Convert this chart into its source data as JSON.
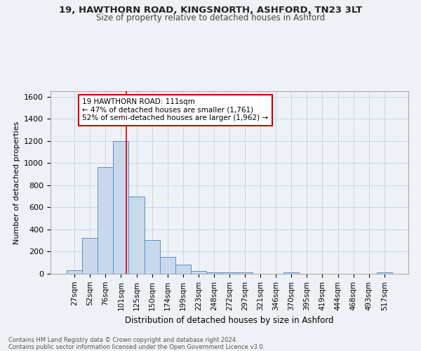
{
  "title_line1": "19, HAWTHORN ROAD, KINGSNORTH, ASHFORD, TN23 3LT",
  "title_line2": "Size of property relative to detached houses in Ashford",
  "xlabel": "Distribution of detached houses by size in Ashford",
  "ylabel": "Number of detached properties",
  "footnote": "Contains HM Land Registry data © Crown copyright and database right 2024.\nContains public sector information licensed under the Open Government Licence v3.0.",
  "bar_labels": [
    "27sqm",
    "52sqm",
    "76sqm",
    "101sqm",
    "125sqm",
    "150sqm",
    "174sqm",
    "199sqm",
    "223sqm",
    "248sqm",
    "272sqm",
    "297sqm",
    "321sqm",
    "346sqm",
    "370sqm",
    "395sqm",
    "419sqm",
    "444sqm",
    "468sqm",
    "493sqm",
    "517sqm"
  ],
  "bar_values": [
    30,
    325,
    965,
    1200,
    700,
    305,
    155,
    80,
    25,
    15,
    15,
    15,
    0,
    0,
    15,
    0,
    0,
    0,
    0,
    0,
    15
  ],
  "bar_color": "#c9d9ed",
  "bar_edge_color": "#5b8ec4",
  "ylim": [
    0,
    1650
  ],
  "yticks": [
    0,
    200,
    400,
    600,
    800,
    1000,
    1200,
    1400,
    1600
  ],
  "vline_x": 3.36,
  "annotation_title": "19 HAWTHORN ROAD: 111sqm",
  "annotation_line1": "← 47% of detached houses are smaller (1,761)",
  "annotation_line2": "52% of semi-detached houses are larger (1,962) →",
  "annotation_box_color": "#ffffff",
  "annotation_box_edge": "#cc0000",
  "vline_color": "#cc0000",
  "grid_color": "#c8d8e8",
  "background_color": "#eef2f7"
}
